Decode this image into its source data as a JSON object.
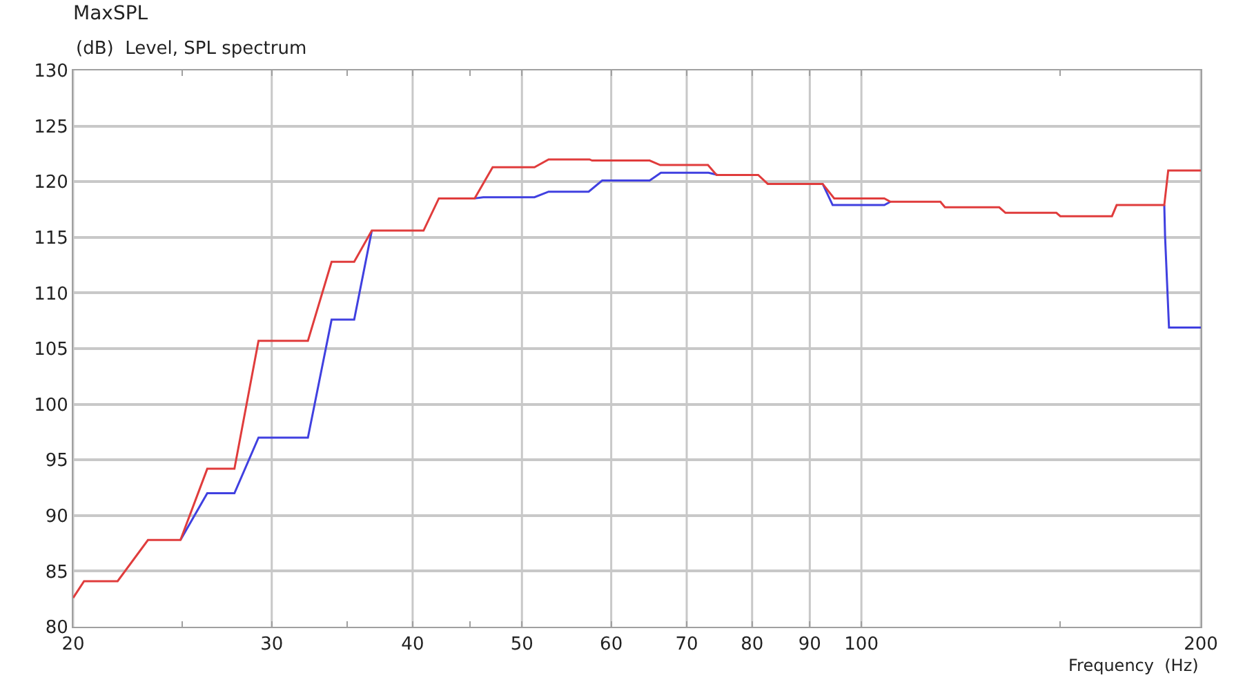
{
  "chart_data": {
    "type": "line",
    "title": "MaxSPL",
    "subtitle": "(dB)  Level, SPL spectrum",
    "xlabel": "Frequency  (Hz)",
    "log": "x",
    "xlim": [
      20,
      200
    ],
    "xticks": [
      20,
      {
        "value": 25,
        "label": null
      },
      30,
      {
        "value": 35,
        "label": null
      },
      40,
      {
        "value": 45,
        "label": null
      },
      50,
      60,
      70,
      80,
      90,
      100,
      {
        "value": 150,
        "label": null
      },
      200
    ],
    "ylim": [
      80,
      130
    ],
    "yticks": [
      80,
      85,
      90,
      95,
      100,
      105,
      110,
      115,
      120,
      125,
      130
    ],
    "grid": true,
    "marker": "none",
    "line_style": "solid",
    "series": [
      {
        "color": "#4040e0",
        "x": [
          24.9,
          26.3,
          27.8,
          29.2,
          32.3,
          33.9,
          35.5,
          36.8
        ],
        "values": [
          87.8,
          92.0,
          92.0,
          97.0,
          97.0,
          107.6,
          107.6,
          115.6
        ]
      },
      {
        "color": "#4040e0",
        "x": [
          45.4,
          46.2,
          51.3,
          52.8,
          57.3,
          58.9,
          64.9,
          66.4,
          73.2,
          74.6
        ],
        "values": [
          118.5,
          118.6,
          118.6,
          119.1,
          119.1,
          120.1,
          120.1,
          120.8,
          120.8,
          120.6
        ]
      },
      {
        "color": "#4040e0",
        "x": [
          92.4,
          94.3,
          104.8,
          106.1
        ],
        "values": [
          119.8,
          117.9,
          117.9,
          118.2
        ]
      },
      {
        "color": "#4040e0",
        "x": [
          185.6,
          185.9,
          187.4,
          200
        ],
        "values": [
          117.9,
          115.1,
          106.9,
          106.9
        ]
      },
      {
        "color": "#e03c3c",
        "x": [
          20,
          20.45,
          21.9,
          23.3,
          24.9,
          26.3,
          27.8,
          29.2,
          32.3,
          33.9,
          35.5,
          36.8,
          40.9,
          42.2,
          45.4,
          47.1,
          51.3,
          52.8,
          57.4,
          57.7,
          64.9,
          66.3,
          73.1,
          74.4,
          81.0,
          82.6,
          92.4,
          94.6,
          104.8,
          106.1,
          117.5,
          118.6,
          132.5,
          134.2,
          148.9,
          150.1,
          166.8,
          168.4,
          185.6,
          187.1,
          200
        ],
        "values": [
          82.6,
          84.1,
          84.1,
          87.8,
          87.8,
          94.2,
          94.2,
          105.7,
          105.7,
          112.8,
          112.8,
          115.6,
          115.6,
          118.5,
          118.5,
          121.3,
          121.3,
          122.0,
          122.0,
          121.9,
          121.9,
          121.5,
          121.5,
          120.6,
          120.6,
          119.8,
          119.8,
          118.5,
          118.5,
          118.2,
          118.2,
          117.7,
          117.7,
          117.2,
          117.2,
          116.9,
          116.9,
          117.9,
          117.9,
          121.0,
          121.0
        ]
      }
    ]
  }
}
